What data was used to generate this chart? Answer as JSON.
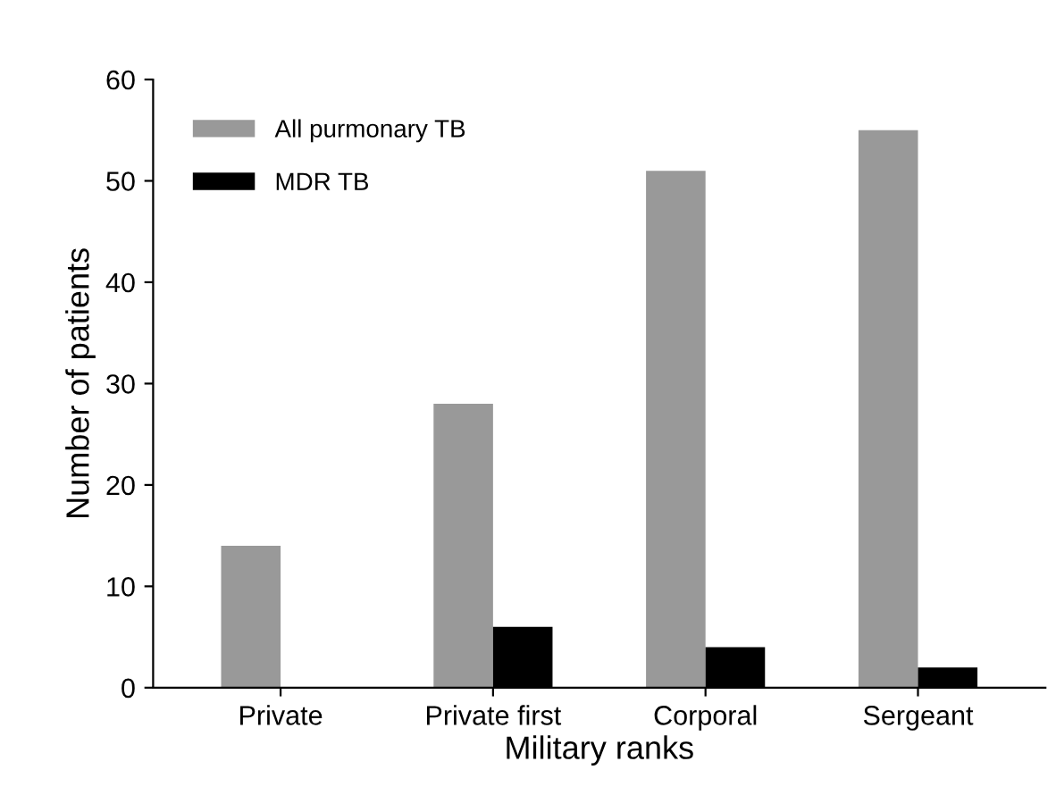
{
  "chart_data": {
    "type": "bar",
    "xlabel": "Military ranks",
    "ylabel": "Number of patients",
    "categories": [
      "Private",
      "Private first",
      "Corporal",
      "Sergeant"
    ],
    "series": [
      {
        "name": "All purmonary TB",
        "color": "#999999",
        "values": [
          14,
          28,
          51,
          55
        ]
      },
      {
        "name": "MDR TB",
        "color": "#000000",
        "values": [
          0,
          6,
          4,
          2
        ]
      }
    ],
    "ylim": [
      0,
      60
    ],
    "yticks": [
      0,
      10,
      20,
      30,
      40,
      50,
      60
    ],
    "grid": false,
    "legend": "top left"
  }
}
